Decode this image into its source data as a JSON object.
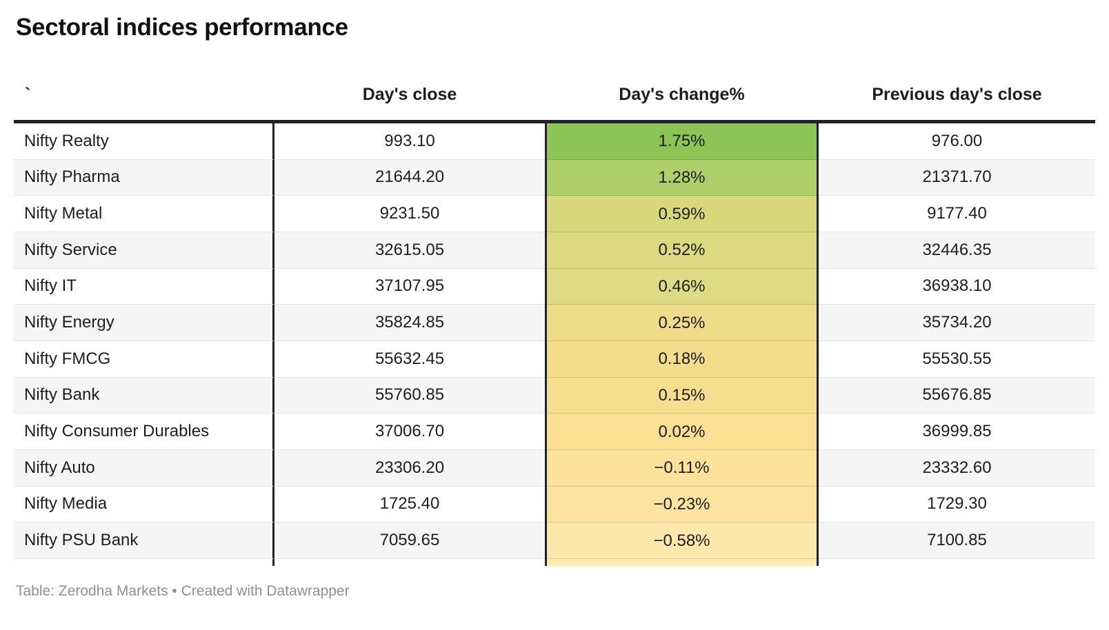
{
  "title": "Sectoral indices performance",
  "footer": "Table: Zerodha Markets • Created with Datawrapper",
  "table": {
    "columns": [
      {
        "label": "`"
      },
      {
        "label": "Day's close"
      },
      {
        "label": "Day's change%"
      },
      {
        "label": "Previous day's close"
      }
    ],
    "rows": [
      {
        "name": "Nifty Realty",
        "close": "993.10",
        "change": "1.75%",
        "prev": "976.00",
        "change_color": "#8cc455"
      },
      {
        "name": "Nifty Pharma",
        "close": "21644.20",
        "change": "1.28%",
        "prev": "21371.70",
        "change_color": "#aed068"
      },
      {
        "name": "Nifty Metal",
        "close": "9231.50",
        "change": "0.59%",
        "prev": "9177.40",
        "change_color": "#d8d87b"
      },
      {
        "name": "Nifty Service",
        "close": "32615.05",
        "change": "0.52%",
        "prev": "32446.35",
        "change_color": "#dcd980"
      },
      {
        "name": "Nifty IT",
        "close": "37107.95",
        "change": "0.46%",
        "prev": "36938.10",
        "change_color": "#dfda84"
      },
      {
        "name": "Nifty Energy",
        "close": "35824.85",
        "change": "0.25%",
        "prev": "35734.20",
        "change_color": "#eedc88"
      },
      {
        "name": "Nifty FMCG",
        "close": "55632.45",
        "change": "0.18%",
        "prev": "55530.55",
        "change_color": "#f3dd8b"
      },
      {
        "name": "Nifty Bank",
        "close": "55760.85",
        "change": "0.15%",
        "prev": "55676.85",
        "change_color": "#f5de8d"
      },
      {
        "name": "Nifty Consumer Durables",
        "close": "37006.70",
        "change": "0.02%",
        "prev": "36999.85",
        "change_color": "#fbe094"
      },
      {
        "name": "Nifty Auto",
        "close": "23306.20",
        "change": "−0.11%",
        "prev": "23332.60",
        "change_color": "#fce29a"
      },
      {
        "name": "Nifty Media",
        "close": "1725.40",
        "change": "−0.23%",
        "prev": "1729.30",
        "change_color": "#fce4a0"
      },
      {
        "name": "Nifty PSU Bank",
        "close": "7059.65",
        "change": "−0.58%",
        "prev": "7100.85",
        "change_color": "#fde8ab"
      }
    ],
    "partial_row_color": "#fdecb2",
    "alt_row_color": "#f5f5f5",
    "rule_color": "#222222"
  },
  "chart_data": {
    "type": "table",
    "title": "Sectoral indices performance",
    "columns": [
      "`",
      "Day's close",
      "Day's change%",
      "Previous day's close"
    ],
    "rows": [
      [
        "Nifty Realty",
        993.1,
        1.75,
        976.0
      ],
      [
        "Nifty Pharma",
        21644.2,
        1.28,
        21371.7
      ],
      [
        "Nifty Metal",
        9231.5,
        0.59,
        9177.4
      ],
      [
        "Nifty Service",
        32615.05,
        0.52,
        32446.35
      ],
      [
        "Nifty IT",
        37107.95,
        0.46,
        36938.1
      ],
      [
        "Nifty Energy",
        35824.85,
        0.25,
        35734.2
      ],
      [
        "Nifty FMCG",
        55632.45,
        0.18,
        55530.55
      ],
      [
        "Nifty Bank",
        55760.85,
        0.15,
        55676.85
      ],
      [
        "Nifty Consumer Durables",
        37006.7,
        0.02,
        36999.85
      ],
      [
        "Nifty Auto",
        23306.2,
        -0.11,
        23332.6
      ],
      [
        "Nifty Media",
        1725.4,
        -0.23,
        1729.3
      ],
      [
        "Nifty PSU Bank",
        7059.65,
        -0.58,
        7100.85
      ]
    ],
    "heatmap_column": "Day's change%",
    "heatmap_scale": [
      "#8cc455",
      "#fde8ab"
    ],
    "footnote": "Table: Zerodha Markets • Created with Datawrapper"
  }
}
